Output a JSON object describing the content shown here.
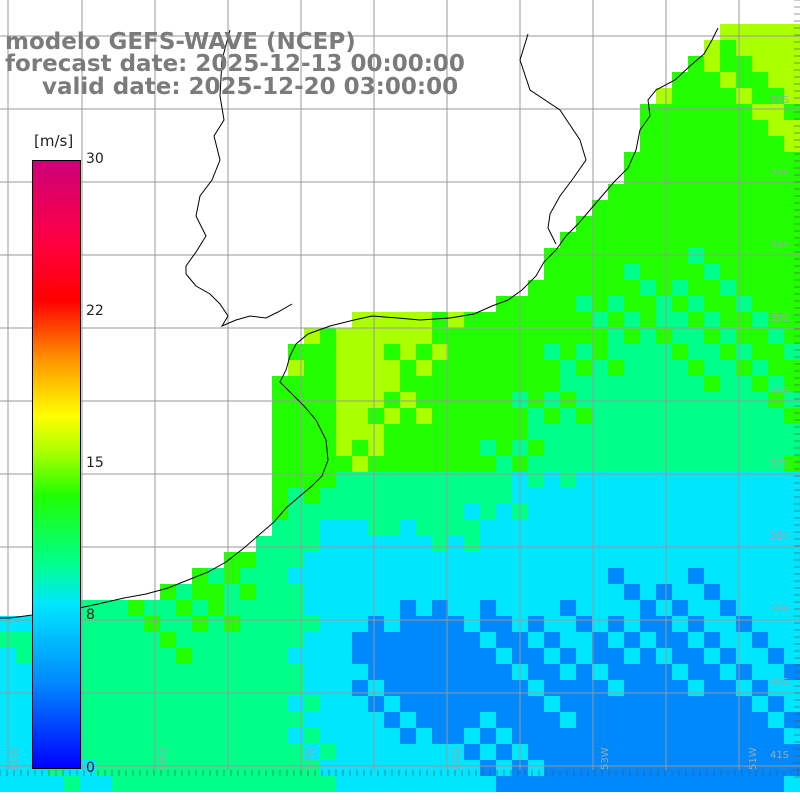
{
  "title": {
    "line1": "modelo GEFS-WAVE (NCEP)",
    "line2": "forecast date: 2025-12-13 00:00:00",
    "line3": "valid date: 2025-12-20 03:00:00"
  },
  "colorbar": {
    "units": "[m/s]",
    "ticks": [
      "30",
      "22",
      "15",
      "8",
      "0"
    ],
    "tick_values": [
      30,
      22,
      15,
      8,
      0
    ],
    "min": 0,
    "max": 30,
    "colors": [
      "#0000ff",
      "#0088ff",
      "#00e6ff",
      "#00ff88",
      "#22ff00",
      "#aaff00",
      "#ffff00",
      "#ff9900",
      "#ff0000",
      "#ff0044",
      "#cc0077"
    ]
  },
  "map": {
    "lat_labels": [
      "32S",
      "33S",
      "34S",
      "35S",
      "36S",
      "37S",
      "38S",
      "39S",
      "40S",
      "41S"
    ],
    "lon_labels": [
      "61W",
      "59W",
      "57W",
      "55W",
      "53W",
      "51W"
    ],
    "land_color": "#ffffff",
    "grid_color": "#999999",
    "coast_color": "#000000",
    "arrow_color": "#ffffff"
  }
}
